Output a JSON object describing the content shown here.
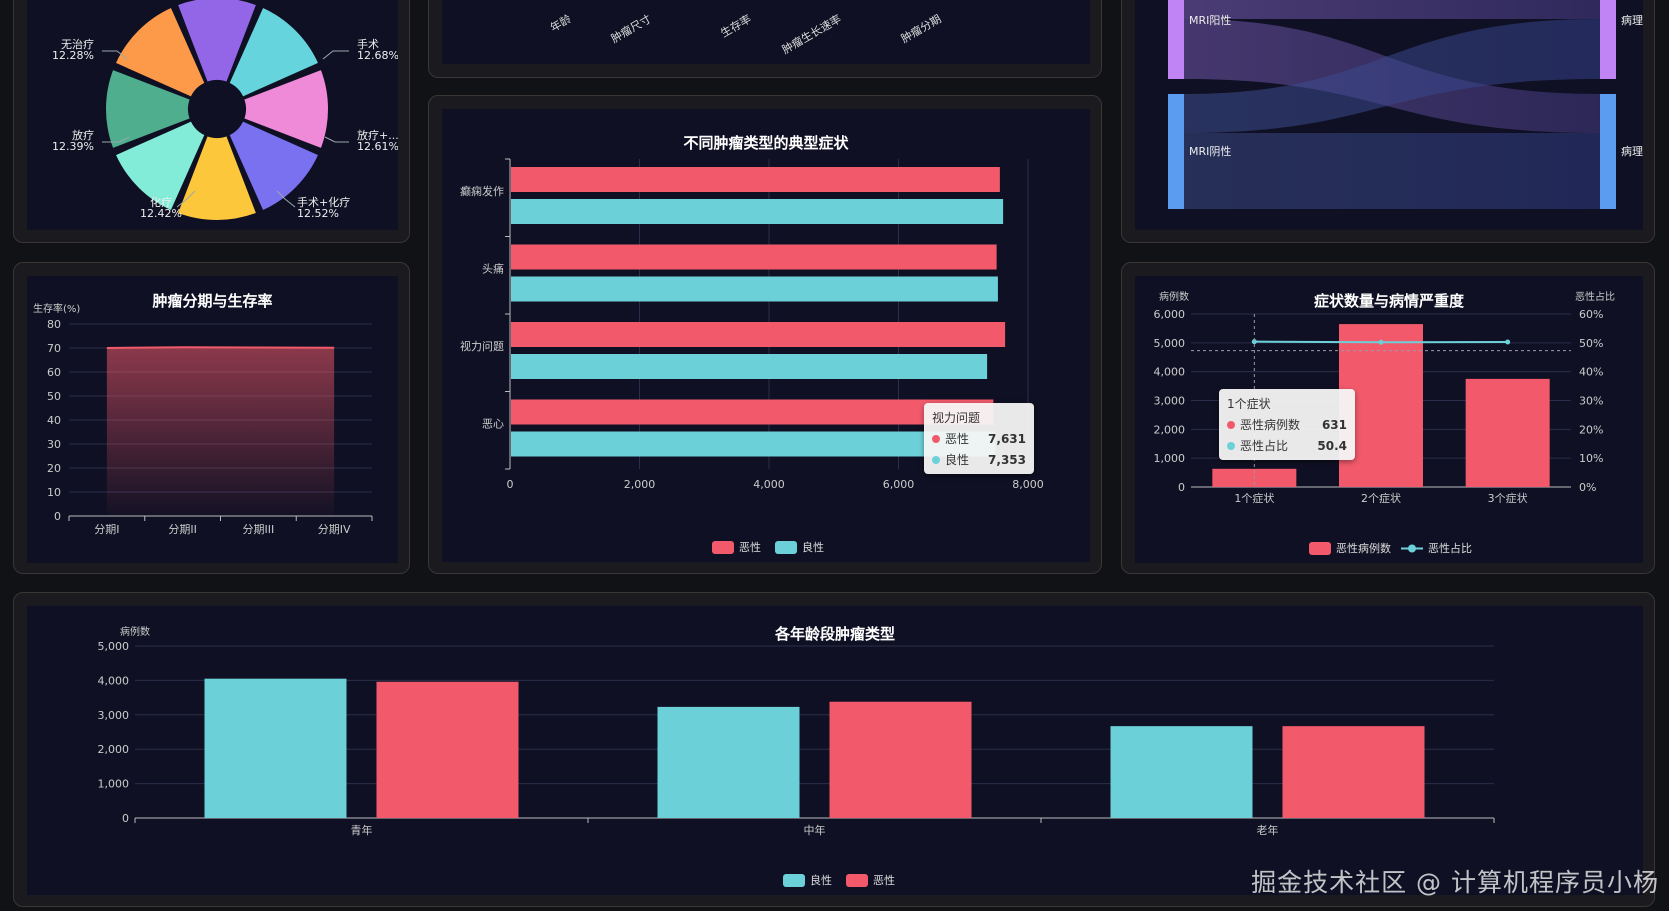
{
  "colors": {
    "malignant": "#f25a6c",
    "benign": "#6cd0d9",
    "grid": "#2b2e4a",
    "axis": "#bbbbbb"
  },
  "pie": {
    "labels": [
      {
        "name": "无治疗",
        "pct": "12.28%"
      },
      {
        "name": "手术",
        "pct": "12.68%"
      },
      {
        "name": "放疗",
        "pct": "12.39%"
      },
      {
        "name": "放疗+...",
        "pct": "12.61%"
      },
      {
        "name": "化疗",
        "pct": "12.42%"
      },
      {
        "name": "手术+化疗",
        "pct": "12.52%"
      }
    ]
  },
  "top_axis": {
    "labels": [
      "年龄",
      "肿瘤尺寸",
      "生存率",
      "肿瘤生长速率",
      "肿瘤分期"
    ]
  },
  "sankey": {
    "left": [
      "MRI阳性",
      "MRI阴性"
    ],
    "right": [
      "病理-恶性",
      "病理-良性"
    ]
  },
  "survival": {
    "title": "肿瘤分期与生存率",
    "ylabel": "生存率(%)",
    "yticks": [
      "80",
      "70",
      "60",
      "50",
      "40",
      "30",
      "20",
      "10",
      "0"
    ],
    "categories": [
      "分期I",
      "分期II",
      "分期III",
      "分期IV"
    ]
  },
  "symptoms": {
    "title": "不同肿瘤类型的典型症状",
    "categories": [
      "癫痫发作",
      "头痛",
      "视力问题",
      "恶心"
    ],
    "xticks": [
      "0",
      "2,000",
      "4,000",
      "6,000",
      "8,000"
    ],
    "legend": [
      "恶性",
      "良性"
    ],
    "tooltip": {
      "title": "视力问题",
      "rows": [
        {
          "name": "恶性",
          "value": "7,631"
        },
        {
          "name": "良性",
          "value": "7,353"
        }
      ]
    }
  },
  "severity": {
    "title": "症状数量与病情严重度",
    "ylabel_left": "病例数",
    "ylabel_right": "恶性占比",
    "yticks_left": [
      "6,000",
      "5,000",
      "4,000",
      "3,000",
      "2,000",
      "1,000",
      "0"
    ],
    "yticks_right": [
      "60%",
      "50%",
      "40%",
      "30%",
      "20%",
      "10%",
      "0%"
    ],
    "categories": [
      "1个症状",
      "2个症状",
      "3个症状"
    ],
    "legend": [
      "恶性病例数",
      "恶性占比"
    ],
    "tooltip": {
      "title": "1个症状",
      "rows": [
        {
          "name": "恶性病例数",
          "value": "631"
        },
        {
          "name": "恶性占比",
          "value": "50.4"
        }
      ]
    }
  },
  "age": {
    "title": "各年龄段肿瘤类型",
    "ylabel": "病例数",
    "yticks": [
      "5,000",
      "4,000",
      "3,000",
      "2,000",
      "1,000",
      "0"
    ],
    "categories": [
      "青年",
      "中年",
      "老年"
    ],
    "legend": [
      "良性",
      "恶性"
    ]
  },
  "watermark": "掘金技术社区 @ 计算机程序员小杨",
  "chart_data": [
    {
      "type": "pie",
      "categories": [
        "无治疗",
        "手术",
        "放疗",
        "放疗+...",
        "化疗",
        "手术+化疗"
      ],
      "values": [
        12.28,
        12.68,
        12.39,
        12.61,
        12.42,
        12.52
      ]
    },
    {
      "type": "area",
      "title": "肿瘤分期与生存率",
      "ylabel": "生存率(%)",
      "categories": [
        "分期I",
        "分期II",
        "分期III",
        "分期IV"
      ],
      "values": [
        70,
        70.3,
        70.2,
        70.1
      ],
      "ylim": [
        0,
        80
      ]
    },
    {
      "type": "bar",
      "title": "不同肿瘤类型的典型症状",
      "categories": [
        "癫痫发作",
        "头痛",
        "视力问题",
        "恶心"
      ],
      "series": [
        {
          "name": "恶性",
          "values": [
            7550,
            7500,
            7631,
            7450
          ]
        },
        {
          "name": "良性",
          "values": [
            7600,
            7520,
            7353,
            7480
          ]
        }
      ],
      "xlim": [
        0,
        8000
      ]
    },
    {
      "type": "bar",
      "title": "症状数量与病情严重度",
      "categories": [
        "1个症状",
        "2个症状",
        "3个症状"
      ],
      "series": [
        {
          "name": "恶性病例数",
          "values": [
            631,
            5650,
            3750
          ]
        },
        {
          "name": "恶性占比",
          "values": [
            50.4,
            50.2,
            50.3
          ]
        }
      ],
      "ylim": [
        0,
        6000
      ],
      "ylim_right": [
        0,
        60
      ]
    },
    {
      "type": "bar",
      "title": "各年龄段肿瘤类型",
      "ylabel": "病例数",
      "categories": [
        "青年",
        "中年",
        "老年"
      ],
      "series": [
        {
          "name": "良性",
          "values": [
            4050,
            3230,
            2670
          ]
        },
        {
          "name": "恶性",
          "values": [
            3960,
            3380,
            2670
          ]
        }
      ],
      "ylim": [
        0,
        5000
      ]
    }
  ]
}
